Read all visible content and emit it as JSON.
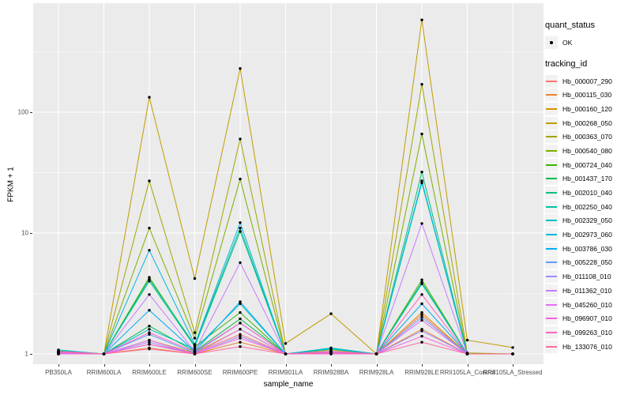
{
  "figure": {
    "panel_bg": "#EBEBEB",
    "grid_color": "#FFFFFF",
    "tick_label_color": "#4D4D4D",
    "point_color": "#000000"
  },
  "chart_data": {
    "type": "line",
    "xlabel": "sample_name",
    "ylabel": "FPKM + 1",
    "yscale": "log10",
    "yticks": [
      1,
      10,
      100
    ],
    "y_minor_gridlines": [
      3.162,
      31.62,
      316.2
    ],
    "ylim": [
      0.82,
      800
    ],
    "grid": true,
    "legend_position": "right",
    "categories": [
      "PB350LA",
      "RRIM600LA",
      "RRIM600LE",
      "RRIM600SE",
      "RRIM600PE",
      "RRIM901LA",
      "RRIM928BA",
      "RRIM928LA",
      "RRIM928LE",
      "RRII105LA_Control",
      "RRII105LA_Stressed"
    ],
    "legend": {
      "quant_status_title": "quant_status",
      "quant_status_items": [
        {
          "label": "OK",
          "marker": "black-point"
        }
      ],
      "tracking_id_title": "tracking_id"
    },
    "series": [
      {
        "name": "Hb_000007_290",
        "color": "#F8766D",
        "values": [
          1.04,
          1,
          1.2,
          1.02,
          1.45,
          1,
          1.02,
          1,
          2.1,
          1,
          1
        ]
      },
      {
        "name": "Hb_000115_030",
        "color": "#EA8331",
        "values": [
          1,
          1,
          1.12,
          1,
          1.25,
          1,
          1,
          1,
          1.6,
          1,
          1
        ]
      },
      {
        "name": "Hb_000160_120",
        "color": "#D89200",
        "values": [
          1,
          1,
          1.3,
          1.02,
          1.6,
          1,
          1.02,
          1,
          2.2,
          1,
          1
        ]
      },
      {
        "name": "Hb_000268_050",
        "color": "#C09B00",
        "values": [
          1.05,
          1,
          133,
          4.2,
          230,
          1.22,
          2.15,
          1,
          580,
          1.3,
          1.13
        ]
      },
      {
        "name": "Hb_000363_070",
        "color": "#A3A500",
        "values": [
          1.02,
          1,
          27,
          1.5,
          60,
          1,
          1.08,
          1,
          170,
          1.02,
          1
        ]
      },
      {
        "name": "Hb_000540_080",
        "color": "#7CAE00",
        "values": [
          1.02,
          1,
          11,
          1.35,
          28,
          1,
          1.05,
          1,
          66,
          1,
          1
        ]
      },
      {
        "name": "Hb_000724_040",
        "color": "#39B600",
        "values": [
          1.03,
          1,
          4.3,
          1.15,
          2.2,
          1,
          1.05,
          1,
          4.1,
          1,
          1
        ]
      },
      {
        "name": "Hb_001437_170",
        "color": "#00BB4E",
        "values": [
          1.02,
          1,
          1.7,
          1.05,
          1.95,
          1,
          1.04,
          1,
          3.9,
          1,
          1
        ]
      },
      {
        "name": "Hb_002010_040",
        "color": "#00BF7D",
        "values": [
          1.06,
          1,
          4.15,
          1.18,
          11,
          1,
          1.12,
          1,
          32,
          1,
          1
        ]
      },
      {
        "name": "Hb_002250_040",
        "color": "#00C1A3",
        "values": [
          1.05,
          1,
          4.0,
          1.15,
          10.3,
          1,
          1.1,
          1,
          26,
          1,
          1
        ]
      },
      {
        "name": "Hb_002329_050",
        "color": "#00BFC4",
        "values": [
          1.08,
          1,
          1.6,
          1.1,
          2.6,
          1,
          1.12,
          1,
          3.8,
          1,
          1
        ]
      },
      {
        "name": "Hb_002973_060",
        "color": "#00B8E0",
        "values": [
          1.05,
          1,
          7.2,
          1.2,
          12.2,
          1,
          1.1,
          1,
          27,
          1,
          1
        ]
      },
      {
        "name": "Hb_003786_030",
        "color": "#00ACF4",
        "values": [
          1.02,
          1,
          2.3,
          1.05,
          2.7,
          1,
          1.03,
          1,
          2.6,
          1,
          1
        ]
      },
      {
        "name": "Hb_005228_050",
        "color": "#619CFF",
        "values": [
          1.02,
          1,
          1.45,
          1.02,
          1.8,
          1,
          1.02,
          1,
          2.0,
          1,
          1
        ]
      },
      {
        "name": "Hb_011108_010",
        "color": "#9C8DFF",
        "values": [
          1,
          1,
          1.25,
          1,
          1.4,
          1,
          1,
          1,
          1.55,
          1,
          1
        ]
      },
      {
        "name": "Hb_011362_010",
        "color": "#C77CFF",
        "values": [
          1.02,
          1,
          3.1,
          1.05,
          5.7,
          1,
          1.03,
          1,
          12,
          1,
          1
        ]
      },
      {
        "name": "Hb_045260_010",
        "color": "#E36EF6",
        "values": [
          1,
          1,
          1.3,
          1,
          1.6,
          1,
          1,
          1,
          1.9,
          1,
          1
        ]
      },
      {
        "name": "Hb_096907_010",
        "color": "#F763E0",
        "values": [
          1,
          1,
          1.2,
          1,
          1.35,
          1,
          1,
          1,
          1.4,
          1,
          1
        ]
      },
      {
        "name": "Hb_099263_010",
        "color": "#FF61C3",
        "values": [
          1.03,
          1,
          1.5,
          1.04,
          1.8,
          1,
          1.05,
          1,
          3.1,
          1,
          1
        ]
      },
      {
        "name": "Hb_133076_010",
        "color": "#FF68A1",
        "values": [
          1.05,
          1,
          1.1,
          1,
          1.15,
          1,
          1.02,
          1,
          1.25,
          1,
          1
        ]
      }
    ]
  }
}
